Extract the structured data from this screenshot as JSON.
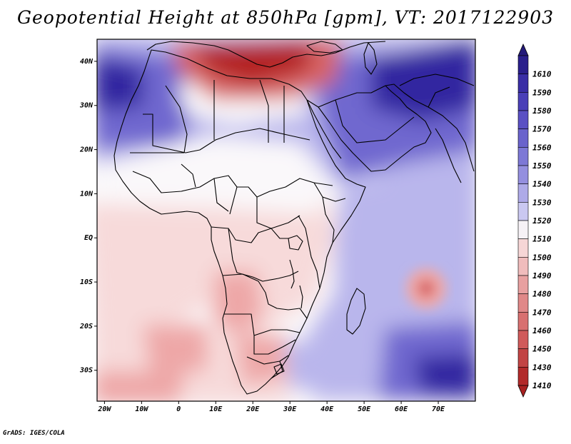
{
  "title": "Geopotential Height at 850hPa [gpm], VT: 2017122903",
  "credit": "GrADS: IGES/COLA",
  "map": {
    "variable": "Geopotential Height",
    "level": "850hPa",
    "units": "gpm",
    "valid_time": "2017122903",
    "lon_range": [
      -22,
      80
    ],
    "lat_range": [
      -37,
      45
    ],
    "lat_ticks": [
      {
        "value": 40,
        "label": "40N"
      },
      {
        "value": 30,
        "label": "30N"
      },
      {
        "value": 20,
        "label": "20N"
      },
      {
        "value": 10,
        "label": "10N"
      },
      {
        "value": 0,
        "label": "EQ"
      },
      {
        "value": -10,
        "label": "10S"
      },
      {
        "value": -20,
        "label": "20S"
      },
      {
        "value": -30,
        "label": "30S"
      }
    ],
    "lon_ticks": [
      {
        "value": -20,
        "label": "20W"
      },
      {
        "value": -10,
        "label": "10W"
      },
      {
        "value": 0,
        "label": "0"
      },
      {
        "value": 10,
        "label": "10E"
      },
      {
        "value": 20,
        "label": "20E"
      },
      {
        "value": 30,
        "label": "30E"
      },
      {
        "value": 40,
        "label": "40E"
      },
      {
        "value": 50,
        "label": "50E"
      },
      {
        "value": 60,
        "label": "60E"
      },
      {
        "value": 70,
        "label": "70E"
      }
    ]
  },
  "colorbar": {
    "levels": [
      {
        "label": "1610",
        "color": "#2a1f8c"
      },
      {
        "label": "1590",
        "color": "#3a2ea6"
      },
      {
        "label": "1580",
        "color": "#4a3fb8"
      },
      {
        "label": "1570",
        "color": "#5a50c4"
      },
      {
        "label": "1560",
        "color": "#6a63cc"
      },
      {
        "label": "1550",
        "color": "#7d78d6"
      },
      {
        "label": "1540",
        "color": "#948fdf"
      },
      {
        "label": "1530",
        "color": "#aeaae8"
      },
      {
        "label": "1520",
        "color": "#cac8f1"
      },
      {
        "label": "1510",
        "color": "#f6f2f6"
      },
      {
        "label": "1500",
        "color": "#f6d6d6"
      },
      {
        "label": "1490",
        "color": "#f0bcbc"
      },
      {
        "label": "1480",
        "color": "#e8a0a0"
      },
      {
        "label": "1470",
        "color": "#e08888"
      },
      {
        "label": "1460",
        "color": "#d87070"
      },
      {
        "label": "1450",
        "color": "#d05a5a"
      },
      {
        "label": "1430",
        "color": "#c24444"
      },
      {
        "label": "1410",
        "color": "#b22a2a"
      }
    ],
    "top_color": "#241a7a",
    "bottom_color": "#a82222"
  },
  "field_colors": {
    "blue_dark": "#3328a0",
    "blue_mid": "#6f68cf",
    "blue_light": "#b9b6ec",
    "white": "#faf8fa",
    "pink_light": "#f7dada",
    "pink_mid": "#eea7a7",
    "red_mid": "#d86565",
    "red_dark": "#b42424"
  }
}
